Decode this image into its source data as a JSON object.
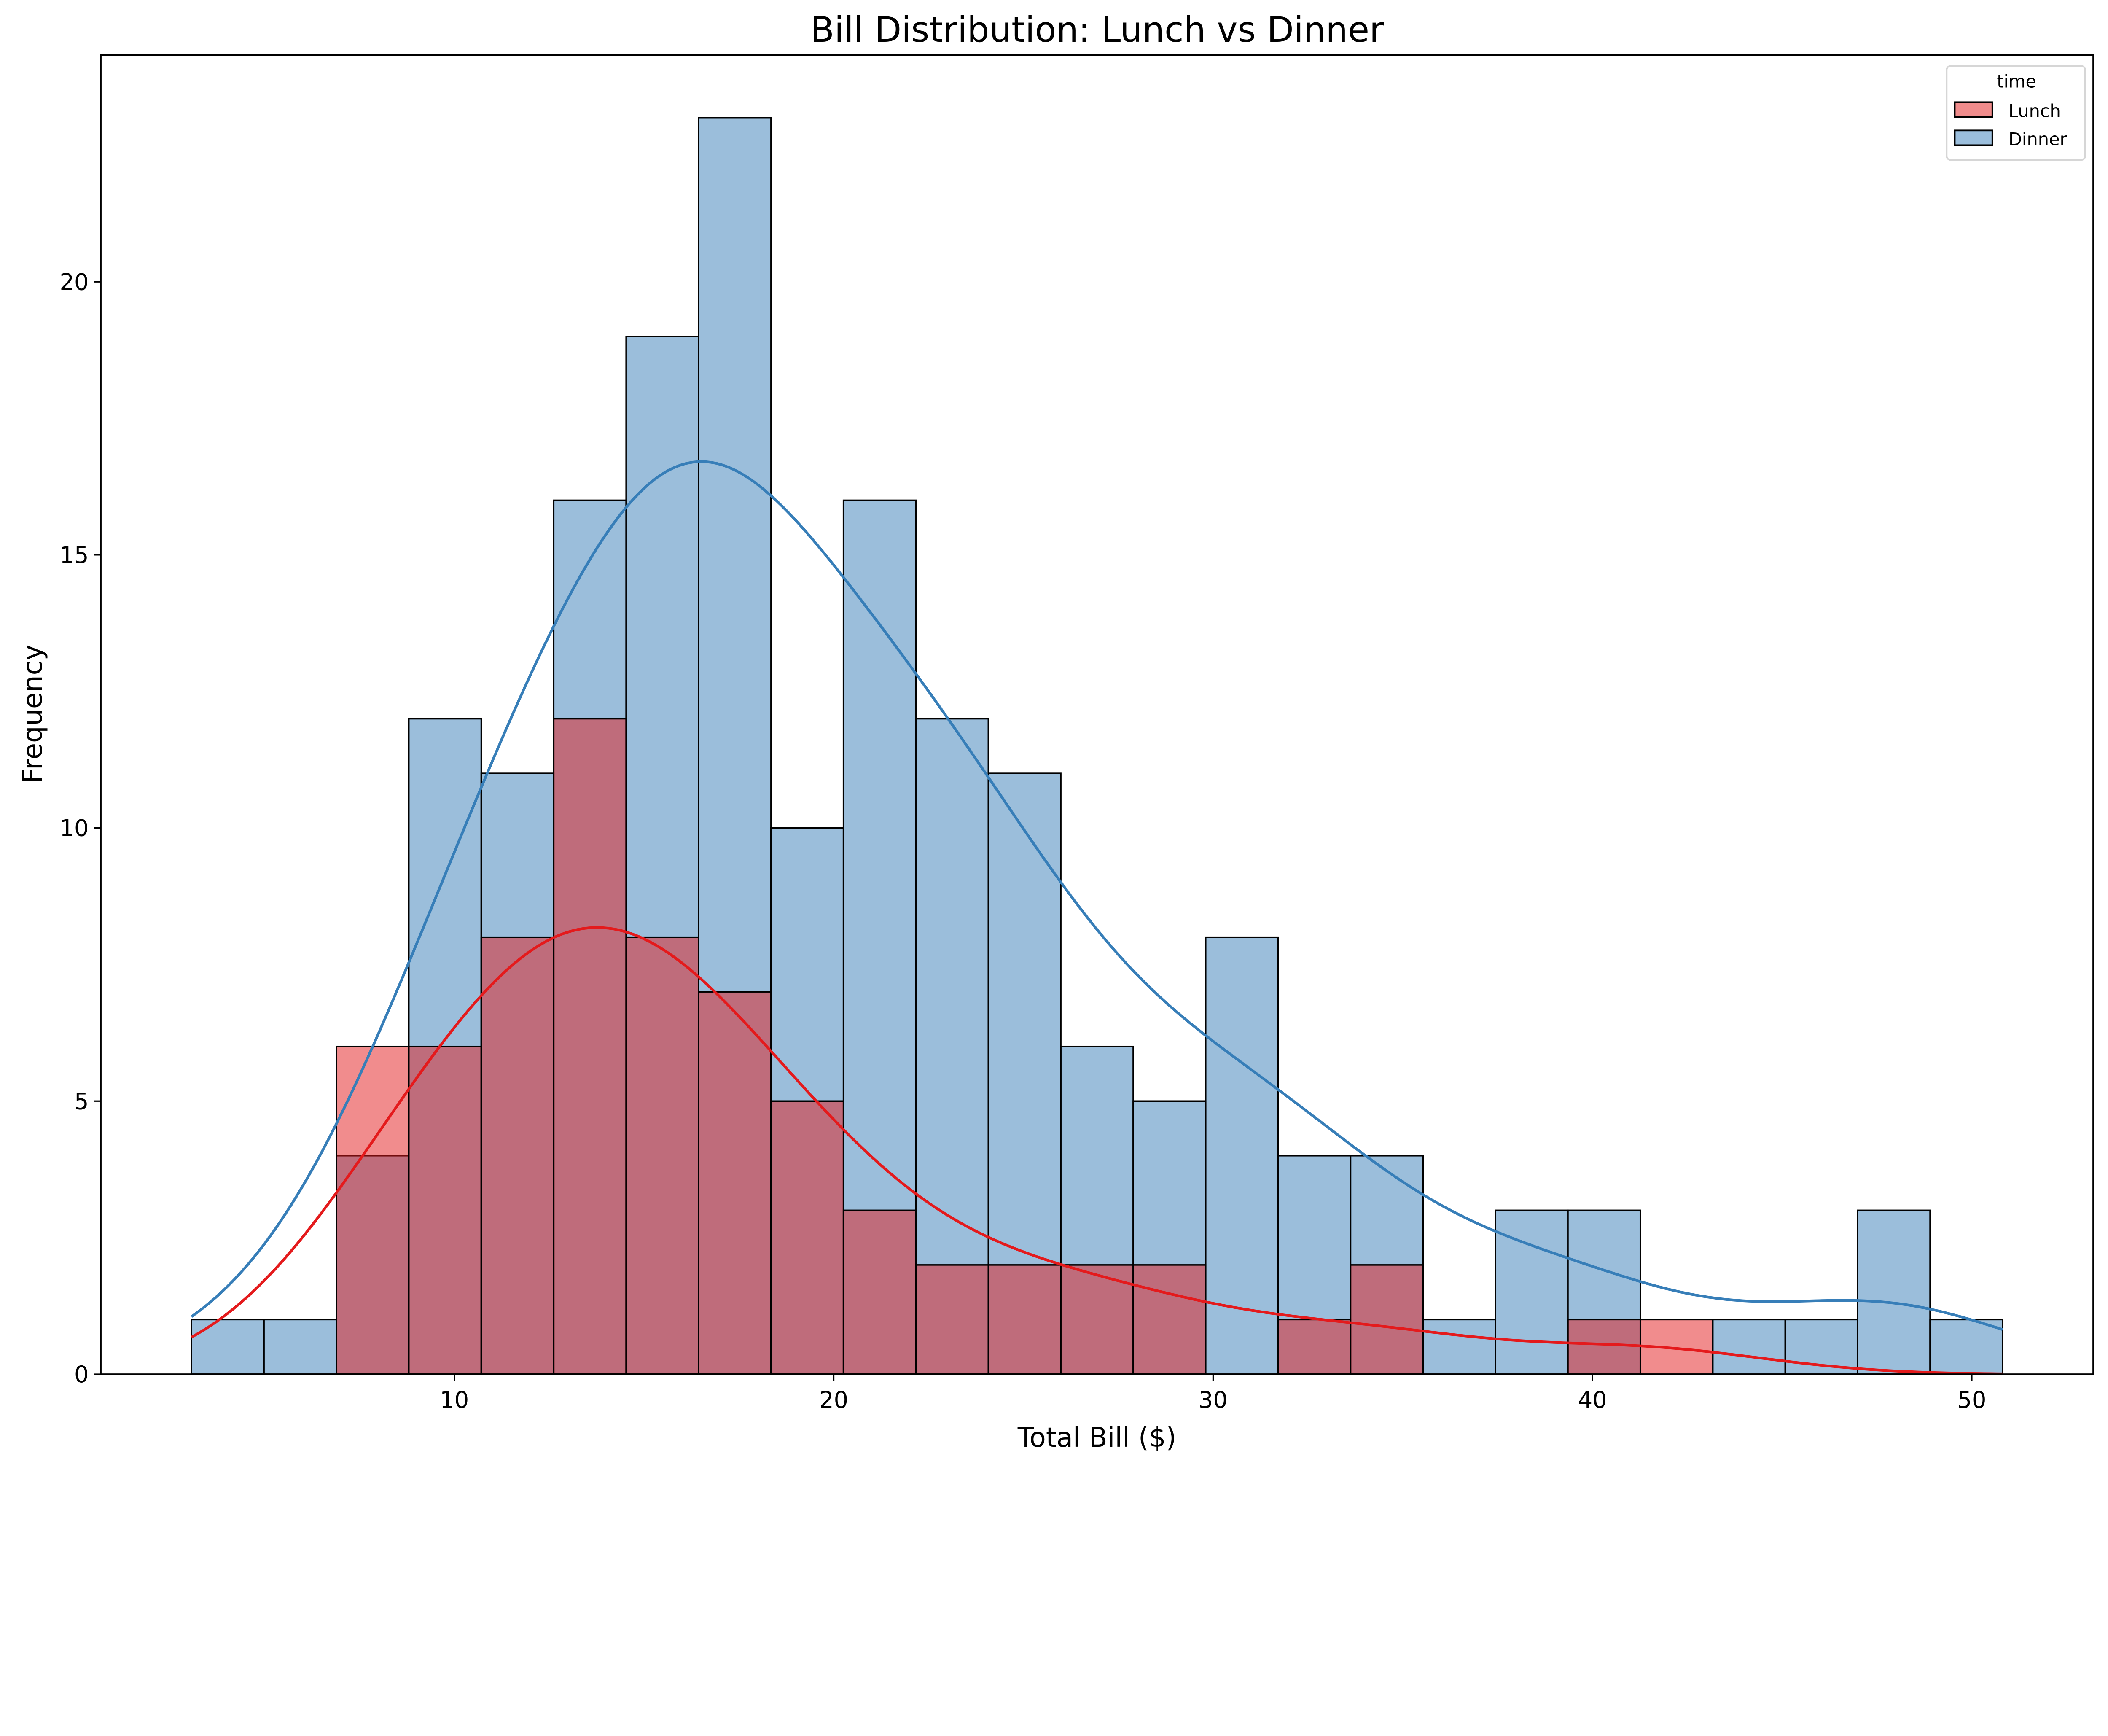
{
  "chart_data": {
    "type": "histogram",
    "title": "Bill Distribution: Lunch vs Dinner",
    "xlabel": "Total Bill ($)",
    "ylabel": "Frequency",
    "xlim": [
      0.68,
      53.2
    ],
    "ylim": [
      0,
      24.15
    ],
    "xticks": [
      10,
      20,
      30,
      40,
      50
    ],
    "yticks": [
      0,
      5,
      10,
      15,
      20
    ],
    "bin_range": [
      3.07,
      50.81
    ],
    "bins": 25,
    "grid": false,
    "legend": {
      "title": "time",
      "placement": "top-right"
    },
    "series": [
      {
        "name": "Lunch",
        "color": "#e41a1c",
        "fill": "#f08c8c",
        "counts": [
          0,
          0,
          6,
          6,
          8,
          12,
          8,
          7,
          5,
          3,
          2,
          2,
          2,
          2,
          0,
          1,
          2,
          0,
          0,
          1,
          1,
          0,
          0,
          0,
          0
        ],
        "kde": true
      },
      {
        "name": "Dinner",
        "color": "#377eb8",
        "fill": "#9bbedc",
        "counts": [
          1,
          1,
          4,
          12,
          11,
          16,
          19,
          23,
          10,
          16,
          12,
          11,
          6,
          5,
          8,
          4,
          4,
          1,
          3,
          3,
          0,
          1,
          1,
          3,
          1
        ],
        "kde": true
      }
    ]
  }
}
